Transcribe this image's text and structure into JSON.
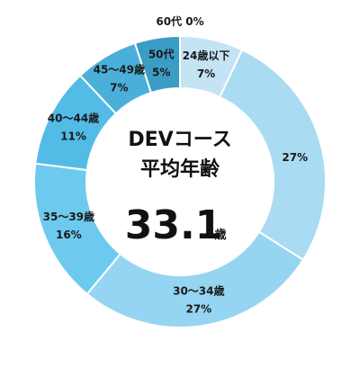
{
  "chart_data": {
    "type": "pie",
    "subtype": "donut",
    "title_line1": "DEVコース",
    "title_line2": "平均年齢",
    "center_value": "33.1",
    "center_unit": "歳",
    "slices": [
      {
        "label": "24歳以下",
        "value": 7,
        "pct_text": "7%",
        "color": "#c4e3f4"
      },
      {
        "label": "",
        "value": 27,
        "pct_text": "27%",
        "color": "#a9dbf2"
      },
      {
        "label": "30～34歳",
        "value": 27,
        "pct_text": "27%",
        "color": "#96d5f1"
      },
      {
        "label": "35～39歳",
        "value": 16,
        "pct_text": "16%",
        "color": "#6dcaee"
      },
      {
        "label": "40～44歳",
        "value": 11,
        "pct_text": "11%",
        "color": "#52bce6"
      },
      {
        "label": "45～49歳",
        "value": 7,
        "pct_text": "7%",
        "color": "#4ab0da"
      },
      {
        "label": "50代",
        "value": 5,
        "pct_text": "5%",
        "color": "#3b9dc5"
      },
      {
        "label": "60代",
        "value": 0,
        "pct_text": "0%",
        "color": "#2c7fa6"
      }
    ],
    "colors": {
      "outside_label": "#1a1a1a",
      "inside_pct": "#ffffff",
      "separator": "#ffffff"
    }
  }
}
